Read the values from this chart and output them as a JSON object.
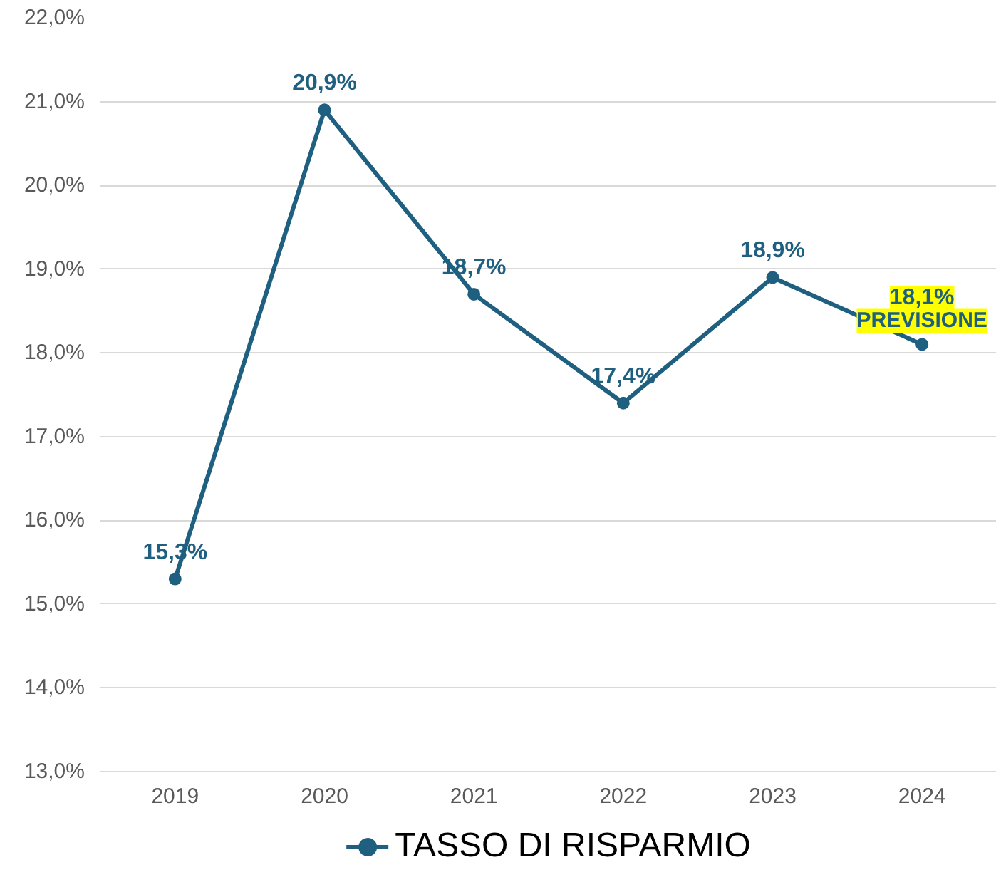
{
  "chart_data": {
    "type": "line",
    "categories": [
      "2019",
      "2020",
      "2021",
      "2022",
      "2023",
      "2024"
    ],
    "series": [
      {
        "name": "TASSO DI RISPARMIO",
        "color": "#1f5f7f",
        "values": [
          15.3,
          20.9,
          18.7,
          17.4,
          18.9,
          18.1
        ],
        "value_labels": [
          "15,3%",
          "20,9%",
          "18,7%",
          "17,4%",
          "18,9%",
          "18,1%"
        ]
      }
    ],
    "ylim": [
      13,
      22
    ],
    "yticks": [
      {
        "value": 13,
        "label": "13,0%"
      },
      {
        "value": 14,
        "label": "14,0%"
      },
      {
        "value": 15,
        "label": "15,0%"
      },
      {
        "value": 16,
        "label": "16,0%"
      },
      {
        "value": 17,
        "label": "17,0%"
      },
      {
        "value": 18,
        "label": "18,0%"
      },
      {
        "value": 19,
        "label": "19,0%"
      },
      {
        "value": 20,
        "label": "20,0%"
      },
      {
        "value": 21,
        "label": "21,0%"
      },
      {
        "value": 22,
        "label": "22,0%"
      }
    ],
    "annotations": [
      {
        "text": "PREVISIONE",
        "x": "2024",
        "y": 18.1
      }
    ],
    "grid": "y",
    "legend": "bottom",
    "marker": "circle",
    "line_style": "solid"
  }
}
